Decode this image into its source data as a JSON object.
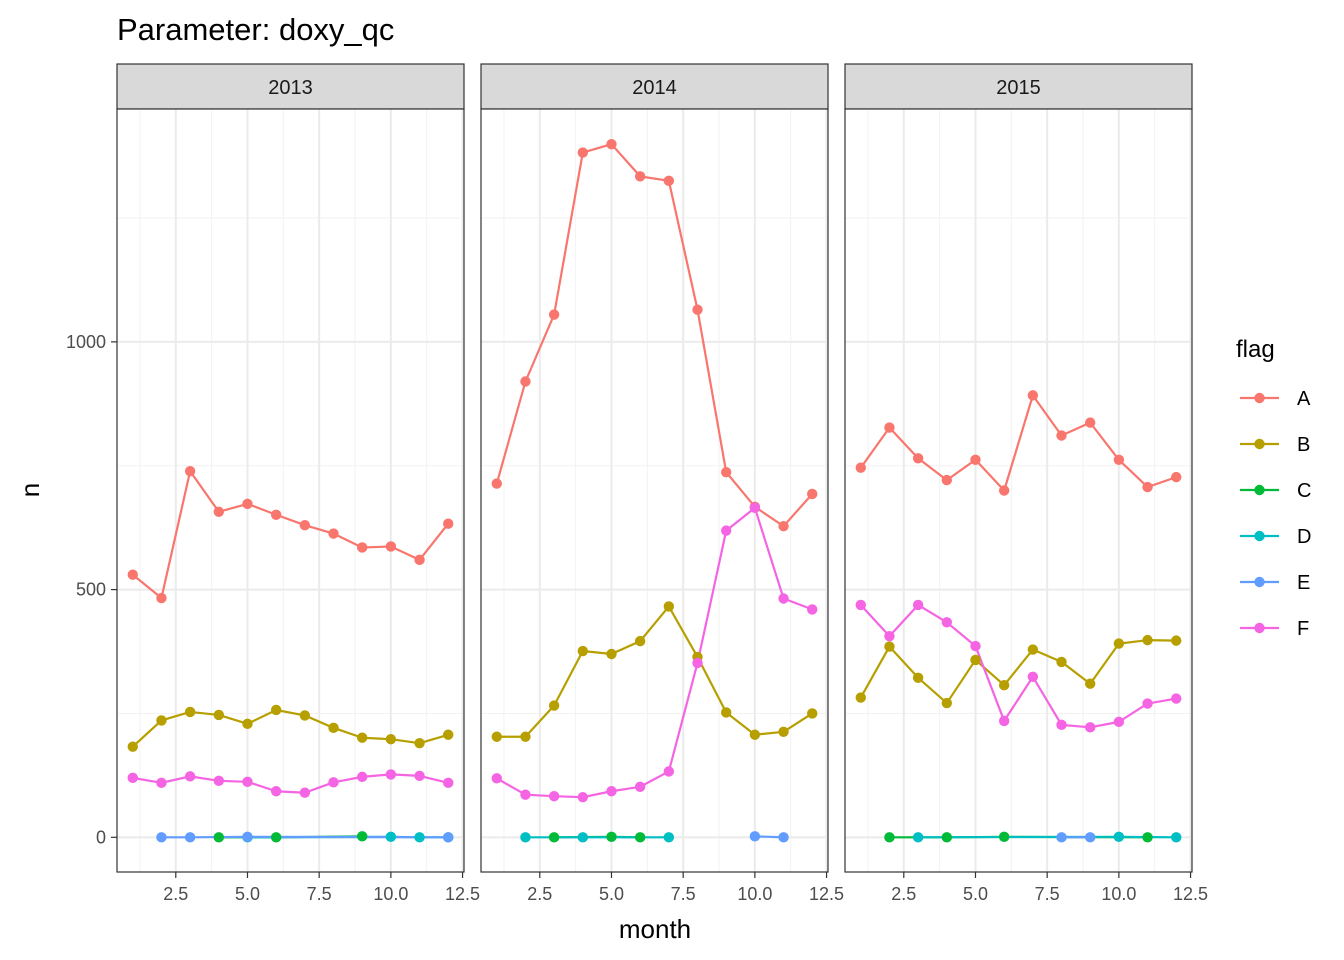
{
  "chart_data": {
    "type": "line",
    "title": "Parameter:  doxy_qc",
    "xlabel": "month",
    "ylabel": "n",
    "xlim": [
      0.45,
      12.55
    ],
    "ylim": [
      -70,
      1470
    ],
    "x_ticks": [
      2.5,
      5.0,
      7.5,
      10.0,
      12.5
    ],
    "x_tick_labels": [
      "2.5",
      "5.0",
      "7.5",
      "10.0",
      "12.5"
    ],
    "y_ticks": [
      0,
      500,
      1000
    ],
    "y_tick_labels": [
      "0",
      "500",
      "1000"
    ],
    "grid": true,
    "legend": {
      "title": "flag",
      "placement": "right"
    },
    "flags": [
      {
        "name": "A",
        "color": "#F8766D"
      },
      {
        "name": "B",
        "color": "#B79F00"
      },
      {
        "name": "C",
        "color": "#00BA38"
      },
      {
        "name": "D",
        "color": "#00BFC4"
      },
      {
        "name": "E",
        "color": "#619CFF"
      },
      {
        "name": "F",
        "color": "#F564E3"
      }
    ],
    "facets": [
      {
        "label": "2013",
        "series": [
          {
            "name": "A",
            "points": [
              [
                1,
                530
              ],
              [
                2,
                483
              ],
              [
                3,
                739
              ],
              [
                4,
                657
              ],
              [
                5,
                673
              ],
              [
                6,
                651
              ],
              [
                7,
                630
              ],
              [
                8,
                613
              ],
              [
                9,
                585
              ],
              [
                10,
                587
              ],
              [
                11,
                560
              ],
              [
                12,
                633
              ]
            ]
          },
          {
            "name": "B",
            "points": [
              [
                1,
                183
              ],
              [
                2,
                236
              ],
              [
                3,
                253
              ],
              [
                4,
                247
              ],
              [
                5,
                229
              ],
              [
                6,
                257
              ],
              [
                7,
                246
              ],
              [
                8,
                221
              ],
              [
                9,
                201
              ],
              [
                10,
                198
              ],
              [
                11,
                190
              ],
              [
                12,
                207
              ]
            ]
          },
          {
            "name": "C",
            "points": [
              [
                4,
                0
              ],
              [
                6,
                0
              ],
              [
                9,
                2
              ]
            ]
          },
          {
            "name": "D",
            "points": [
              [
                5,
                0
              ],
              [
                10,
                1
              ],
              [
                11,
                0
              ],
              [
                12,
                0
              ]
            ]
          },
          {
            "name": "E",
            "points": [
              [
                2,
                0
              ],
              [
                3,
                0
              ],
              [
                5,
                1
              ],
              [
                12,
                0
              ]
            ]
          },
          {
            "name": "F",
            "points": [
              [
                1,
                120
              ],
              [
                2,
                110
              ],
              [
                3,
                123
              ],
              [
                4,
                114
              ],
              [
                5,
                112
              ],
              [
                6,
                93
              ],
              [
                7,
                90
              ],
              [
                8,
                111
              ],
              [
                9,
                122
              ],
              [
                10,
                127
              ],
              [
                11,
                124
              ],
              [
                12,
                110
              ]
            ]
          }
        ]
      },
      {
        "label": "2014",
        "series": [
          {
            "name": "A",
            "points": [
              [
                1,
                714
              ],
              [
                2,
                920
              ],
              [
                3,
                1055
              ],
              [
                4,
                1382
              ],
              [
                5,
                1399
              ],
              [
                6,
                1334
              ],
              [
                7,
                1325
              ],
              [
                8,
                1065
              ],
              [
                9,
                737
              ],
              [
                10,
                667
              ],
              [
                11,
                628
              ],
              [
                12,
                693
              ]
            ]
          },
          {
            "name": "B",
            "points": [
              [
                1,
                203
              ],
              [
                2,
                203
              ],
              [
                3,
                266
              ],
              [
                4,
                376
              ],
              [
                5,
                370
              ],
              [
                6,
                396
              ],
              [
                7,
                466
              ],
              [
                8,
                364
              ],
              [
                9,
                252
              ],
              [
                10,
                207
              ],
              [
                11,
                213
              ],
              [
                12,
                250
              ]
            ]
          },
          {
            "name": "C",
            "points": [
              [
                3,
                0
              ],
              [
                5,
                1
              ],
              [
                6,
                0
              ]
            ]
          },
          {
            "name": "D",
            "points": [
              [
                2,
                0
              ],
              [
                4,
                0
              ],
              [
                7,
                0
              ]
            ]
          },
          {
            "name": "E",
            "points": [
              [
                10,
                2
              ],
              [
                11,
                0
              ]
            ]
          },
          {
            "name": "F",
            "points": [
              [
                1,
                119
              ],
              [
                2,
                86
              ],
              [
                3,
                83
              ],
              [
                4,
                81
              ],
              [
                5,
                93
              ],
              [
                6,
                102
              ],
              [
                7,
                133
              ],
              [
                8,
                352
              ],
              [
                9,
                619
              ],
              [
                10,
                665
              ],
              [
                11,
                482
              ],
              [
                12,
                460
              ]
            ]
          }
        ]
      },
      {
        "label": "2015",
        "series": [
          {
            "name": "A",
            "points": [
              [
                1,
                746
              ],
              [
                2,
                827
              ],
              [
                3,
                765
              ],
              [
                4,
                721
              ],
              [
                5,
                762
              ],
              [
                6,
                700
              ],
              [
                7,
                892
              ],
              [
                8,
                811
              ],
              [
                9,
                837
              ],
              [
                10,
                762
              ],
              [
                11,
                707
              ],
              [
                12,
                727
              ]
            ]
          },
          {
            "name": "B",
            "points": [
              [
                1,
                282
              ],
              [
                2,
                385
              ],
              [
                3,
                322
              ],
              [
                4,
                271
              ],
              [
                5,
                358
              ],
              [
                6,
                307
              ],
              [
                7,
                379
              ],
              [
                8,
                354
              ],
              [
                9,
                310
              ],
              [
                10,
                391
              ],
              [
                11,
                398
              ],
              [
                12,
                397
              ]
            ]
          },
          {
            "name": "C",
            "points": [
              [
                2,
                0
              ],
              [
                4,
                0
              ],
              [
                6,
                1
              ],
              [
                11,
                0
              ]
            ]
          },
          {
            "name": "D",
            "points": [
              [
                3,
                0
              ],
              [
                10,
                1
              ],
              [
                12,
                0
              ]
            ]
          },
          {
            "name": "E",
            "points": [
              [
                8,
                0
              ],
              [
                9,
                0
              ]
            ]
          },
          {
            "name": "F",
            "points": [
              [
                1,
                469
              ],
              [
                2,
                406
              ],
              [
                3,
                469
              ],
              [
                4,
                434
              ],
              [
                5,
                386
              ],
              [
                6,
                235
              ],
              [
                7,
                324
              ],
              [
                8,
                227
              ],
              [
                9,
                222
              ],
              [
                10,
                233
              ],
              [
                11,
                270
              ],
              [
                12,
                280
              ]
            ]
          }
        ]
      }
    ]
  }
}
